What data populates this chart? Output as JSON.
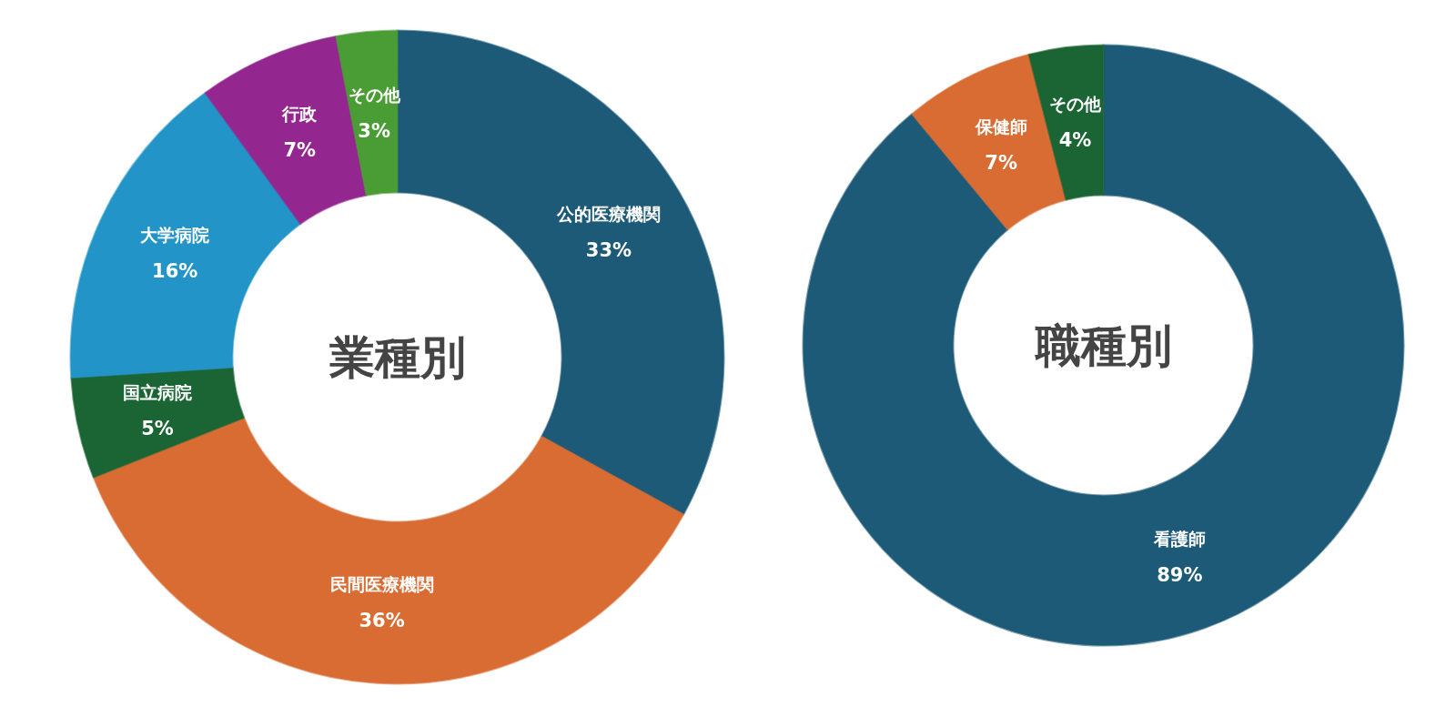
{
  "chart_data": [
    {
      "type": "donut",
      "title": "業種別",
      "categories": [
        "公的医療機関",
        "民間医療機関",
        "国立病院",
        "大学病院",
        "行政",
        "その他"
      ],
      "values": [
        33,
        36,
        5,
        16,
        7,
        3
      ],
      "colors": [
        "#1d5a78",
        "#d96c33",
        "#1b6434",
        "#2294c7",
        "#93278f",
        "#4a9c34"
      ],
      "value_labels": [
        "33%",
        "36%",
        "5%",
        "16%",
        "7%",
        "3%"
      ],
      "legend": false
    },
    {
      "type": "donut",
      "title": "職種別",
      "categories": [
        "看護師",
        "保健師",
        "その他"
      ],
      "values": [
        89,
        7,
        4
      ],
      "colors": [
        "#1d5a78",
        "#d96c33",
        "#1b6434"
      ],
      "value_labels": [
        "89%",
        "7%",
        "4%"
      ],
      "legend": false
    }
  ]
}
